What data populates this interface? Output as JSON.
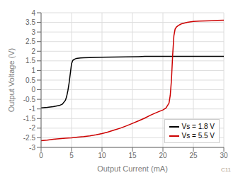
{
  "chart_data": {
    "type": "line",
    "xlabel": "Output Current (mA)",
    "ylabel": "Output Voltage (V)",
    "xlim": [
      0,
      30
    ],
    "ylim": [
      -3,
      4
    ],
    "xticks": [
      0,
      5,
      10,
      15,
      20,
      25,
      30
    ],
    "yticks": [
      -3,
      -2.5,
      -2,
      -1.5,
      -1,
      -0.5,
      0,
      0.5,
      1,
      1.5,
      2,
      2.5,
      3,
      3.5,
      4
    ],
    "grid": true,
    "legend": "lower right",
    "annotations": [
      "C11"
    ],
    "series": [
      {
        "name": "Vs = 1.8 V",
        "color": "#000000",
        "x": [
          0,
          1,
          2,
          3,
          3.5,
          4,
          4.2,
          4.4,
          4.6,
          4.8,
          5.0,
          5.2,
          5.4,
          5.6,
          5.8,
          6.0,
          6.5,
          7,
          8,
          9,
          10,
          12,
          14,
          16,
          17,
          18,
          19,
          20,
          21,
          22,
          23,
          24,
          25,
          26,
          27,
          28,
          29,
          30
        ],
        "values": [
          -0.95,
          -0.92,
          -0.88,
          -0.82,
          -0.75,
          -0.55,
          -0.35,
          -0.05,
          0.35,
          0.85,
          1.35,
          1.52,
          1.57,
          1.6,
          1.62,
          1.63,
          1.65,
          1.66,
          1.67,
          1.68,
          1.69,
          1.7,
          1.71,
          1.72,
          1.73,
          1.73,
          1.73,
          1.73,
          1.73,
          1.73,
          1.73,
          1.73,
          1.73,
          1.73,
          1.73,
          1.73,
          1.73,
          1.73
        ]
      },
      {
        "name": "Vs = 5.5 V",
        "color": "#cc0000",
        "x": [
          0,
          1,
          2,
          3,
          4,
          5,
          6,
          7,
          8,
          9,
          10,
          11,
          12,
          13,
          14,
          15,
          16,
          17,
          18,
          19,
          20,
          20.5,
          21.0,
          21.2,
          21.4,
          21.6,
          21.8,
          22.0,
          22.2,
          22.5,
          23,
          24,
          25,
          26,
          27,
          28,
          29,
          30
        ],
        "values": [
          -2.65,
          -2.62,
          -2.58,
          -2.55,
          -2.52,
          -2.5,
          -2.47,
          -2.44,
          -2.4,
          -2.35,
          -2.28,
          -2.2,
          -2.1,
          -2.0,
          -1.88,
          -1.75,
          -1.62,
          -1.48,
          -1.32,
          -1.18,
          -1.05,
          -0.95,
          -0.7,
          -0.3,
          0.5,
          1.8,
          2.8,
          3.15,
          3.25,
          3.33,
          3.42,
          3.5,
          3.55,
          3.57,
          3.58,
          3.59,
          3.6,
          3.61
        ]
      }
    ]
  }
}
